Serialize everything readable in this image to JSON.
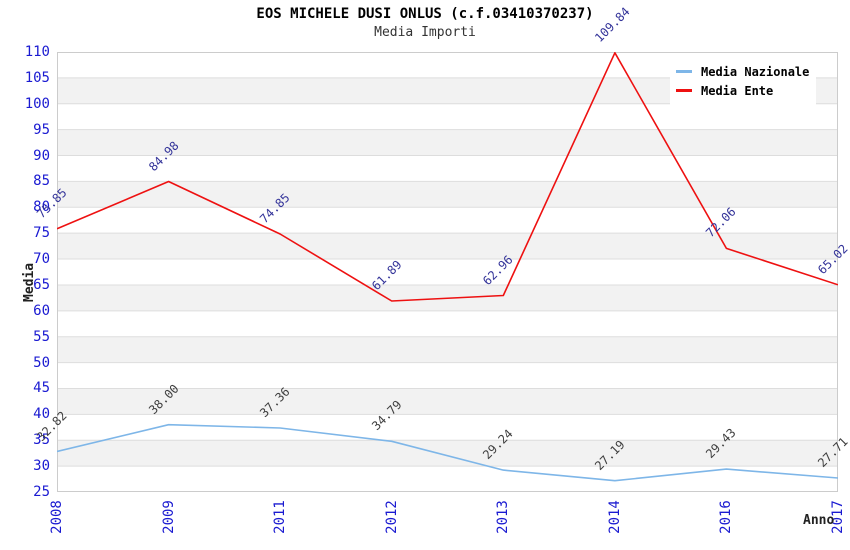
{
  "chart_data": {
    "type": "line",
    "title": "EOS MICHELE DUSI ONLUS (c.f.03410370237)",
    "subtitle": "Media Importi",
    "xlabel": "Anno",
    "ylabel": "Media",
    "categories": [
      "2008",
      "2009",
      "2011",
      "2012",
      "2013",
      "2014",
      "2016",
      "2017"
    ],
    "series": [
      {
        "name": "Media Nazionale",
        "color": "#7EB6E8",
        "label_color": "#3F3F3F",
        "values": [
          32.82,
          38.0,
          37.36,
          34.79,
          29.24,
          27.19,
          29.43,
          27.71
        ]
      },
      {
        "name": "Media Ente",
        "color": "#EE1111",
        "label_color": "#333399",
        "values": [
          75.85,
          84.98,
          74.85,
          61.89,
          62.96,
          109.84,
          72.06,
          65.02
        ]
      }
    ],
    "ylim": [
      25,
      110
    ],
    "ytick_step": 5,
    "yticks": [
      25,
      30,
      35,
      40,
      45,
      50,
      55,
      60,
      65,
      70,
      75,
      80,
      85,
      90,
      95,
      100,
      105,
      110
    ],
    "axis_tick_color": "#1A1AD1",
    "band_color": "#F2F2F2",
    "grid_color": "#DDDDDD",
    "plot_border_color": "#CCCCCC",
    "legend_position": "top-right",
    "grid": "horizontal-bands",
    "data_label_decimals": 2
  }
}
